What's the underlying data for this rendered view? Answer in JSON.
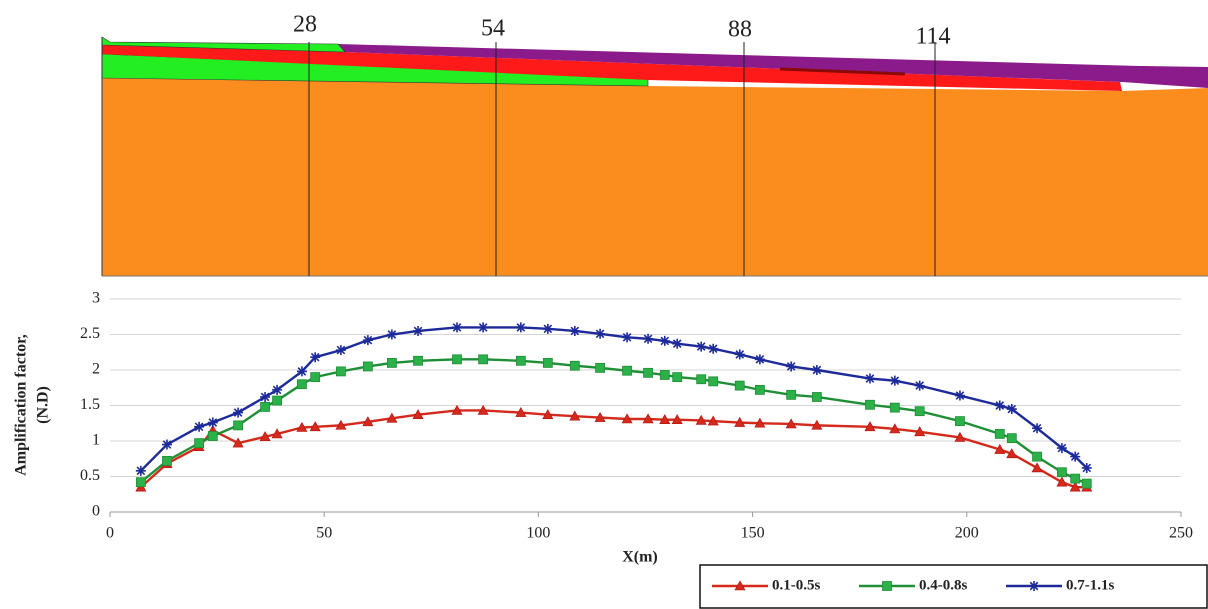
{
  "section_labels": [
    "28",
    "54",
    "88",
    "114"
  ],
  "chart_data": {
    "type": "line",
    "x_label": "X(m)",
    "y_label": [
      "Amplification factor,",
      "(N.D)"
    ],
    "x": [
      7.2,
      13.3,
      20.8,
      24,
      29.9,
      36.2,
      39,
      44.8,
      47.9,
      53.9,
      60.2,
      65.8,
      71.9,
      81,
      87.1,
      95.9,
      102.2,
      108.5,
      114.4,
      120.7,
      125.6,
      129.5,
      132.4,
      138,
      140.8,
      147,
      151.7,
      159,
      165,
      177.4,
      183.2,
      189,
      198.4,
      207.7,
      210.5,
      216.4,
      222.2,
      225.3,
      228
    ],
    "series": [
      {
        "name": "0.1-0.5s",
        "color": "#d42a1c",
        "marker": "triangle",
        "values": [
          0.35,
          0.68,
          0.92,
          1.15,
          0.97,
          1.06,
          1.1,
          1.19,
          1.2,
          1.22,
          1.27,
          1.32,
          1.37,
          1.43,
          1.43,
          1.4,
          1.37,
          1.35,
          1.33,
          1.31,
          1.31,
          1.3,
          1.3,
          1.29,
          1.28,
          1.26,
          1.25,
          1.24,
          1.22,
          1.2,
          1.17,
          1.13,
          1.05,
          0.88,
          0.82,
          0.62,
          0.42,
          0.35,
          0.35
        ]
      },
      {
        "name": "0.4-0.8s",
        "color": "#1e8f35",
        "marker": "square",
        "values": [
          0.42,
          0.72,
          0.97,
          1.07,
          1.22,
          1.48,
          1.57,
          1.8,
          1.9,
          1.98,
          2.05,
          2.1,
          2.13,
          2.15,
          2.15,
          2.13,
          2.1,
          2.06,
          2.03,
          1.99,
          1.96,
          1.93,
          1.9,
          1.87,
          1.84,
          1.78,
          1.72,
          1.65,
          1.62,
          1.51,
          1.47,
          1.42,
          1.28,
          1.1,
          1.04,
          0.78,
          0.56,
          0.47,
          0.4
        ]
      },
      {
        "name": "0.7-1.1s",
        "color": "#1c2a9a",
        "marker": "star",
        "values": [
          0.58,
          0.95,
          1.2,
          1.26,
          1.4,
          1.62,
          1.72,
          1.98,
          2.18,
          2.28,
          2.42,
          2.5,
          2.55,
          2.6,
          2.6,
          2.6,
          2.58,
          2.55,
          2.51,
          2.46,
          2.44,
          2.41,
          2.37,
          2.33,
          2.3,
          2.22,
          2.15,
          2.05,
          2.0,
          1.88,
          1.85,
          1.78,
          1.64,
          1.5,
          1.45,
          1.18,
          0.9,
          0.78,
          0.62
        ]
      }
    ],
    "xlim": [
      0,
      250
    ],
    "xticks": [
      0,
      50,
      100,
      150,
      200,
      250
    ],
    "ylim": [
      0,
      3
    ],
    "yticks": [
      0,
      0.5,
      1,
      1.5,
      2,
      2.5,
      3
    ],
    "grid": true,
    "legend": "bottom-right"
  }
}
